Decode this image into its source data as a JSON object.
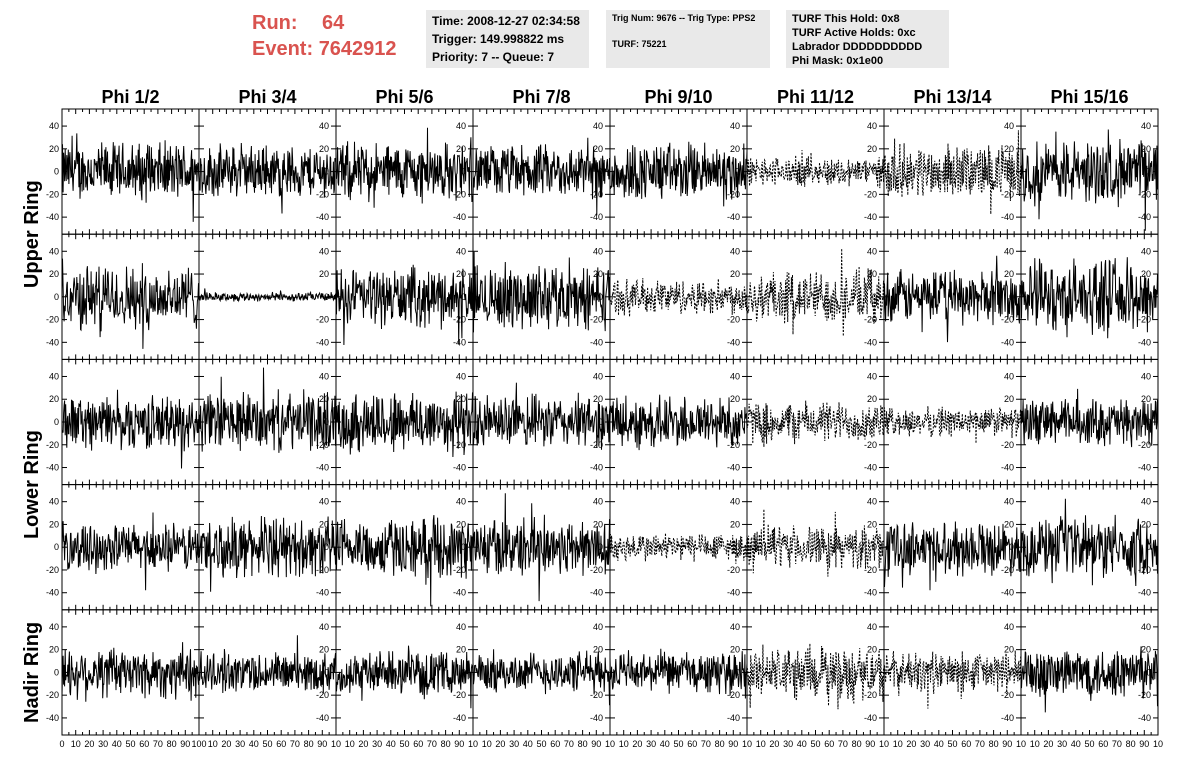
{
  "header": {
    "run_label": "Run:",
    "run_value": "64",
    "event_label": "Event:",
    "event_value": "7642912",
    "time": "Time: 2008-12-27 02:34:58",
    "trigger": "Trigger: 149.998822 ms",
    "priority": "Priority: 7 -- Queue: 7",
    "trig_num": "Trig Num: 9676 -- Trig Type: PPS2",
    "turf": "TURF: 75221",
    "turf_hold": "TURF This Hold: 0x8",
    "turf_active": "TURF Active Holds: 0xc",
    "labrador": "Labrador DDDDDDDDDD",
    "phi_mask": "Phi Mask: 0x1e00"
  },
  "colors": {
    "header_red": "#d9534f",
    "info_bg": "#e9e9e9"
  },
  "chart_data": {
    "type": "line",
    "columns": [
      "Phi 1/2",
      "Phi 3/4",
      "Phi 5/6",
      "Phi 7/8",
      "Phi 9/10",
      "Phi 11/12",
      "Phi 13/14",
      "Phi 15/16"
    ],
    "rows": [
      "Upper Ring",
      "Upper Ring",
      "Lower Ring",
      "Lower Ring",
      "Nadir Ring"
    ],
    "ring_labels": [
      {
        "label": "Upper Ring",
        "rows": [
          0,
          1
        ]
      },
      {
        "label": "Lower Ring",
        "rows": [
          2,
          3
        ]
      },
      {
        "label": "Nadir Ring",
        "rows": [
          4
        ]
      }
    ],
    "xlim": [
      0,
      100
    ],
    "ylim": [
      -55,
      55
    ],
    "yticks": [
      -40,
      -20,
      0,
      20,
      40
    ],
    "x_tick_labels_first": [
      "0",
      "10",
      "20",
      "30",
      "40",
      "50",
      "60",
      "70",
      "80",
      "90",
      "100"
    ],
    "x_tick_labels": [
      "10",
      "20",
      "30",
      "40",
      "50",
      "60",
      "70",
      "80",
      "90",
      "10"
    ],
    "amplitude": [
      [
        20,
        18,
        20,
        18,
        20,
        10,
        18,
        22
      ],
      [
        22,
        3,
        20,
        22,
        12,
        18,
        18,
        25
      ],
      [
        18,
        20,
        22,
        18,
        18,
        14,
        10,
        16
      ],
      [
        16,
        20,
        20,
        20,
        10,
        14,
        18,
        20
      ],
      [
        18,
        14,
        14,
        14,
        14,
        18,
        14,
        18
      ]
    ],
    "dashed": [
      [
        false,
        false,
        false,
        false,
        false,
        true,
        true,
        false
      ],
      [
        false,
        false,
        false,
        false,
        true,
        true,
        false,
        false
      ],
      [
        false,
        false,
        false,
        false,
        false,
        true,
        true,
        false
      ],
      [
        false,
        false,
        false,
        false,
        true,
        true,
        false,
        false
      ],
      [
        false,
        false,
        false,
        false,
        false,
        true,
        true,
        false
      ]
    ],
    "samples": 260
  }
}
